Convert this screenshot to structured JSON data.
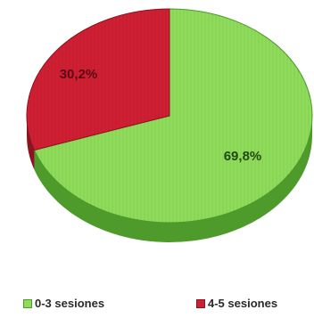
{
  "chart_data": {
    "type": "pie",
    "title": "",
    "slices": [
      {
        "label": "0-3 sesiones",
        "value": 69.8,
        "display": "69,8%",
        "color": "#8fdb5a",
        "shade": "#4e9a2a"
      },
      {
        "label": "4-5 sesiones",
        "value": 30.2,
        "display": "30,2%",
        "color": "#d01f33",
        "shade": "#8a1420"
      }
    ],
    "legend_position": "bottom"
  }
}
